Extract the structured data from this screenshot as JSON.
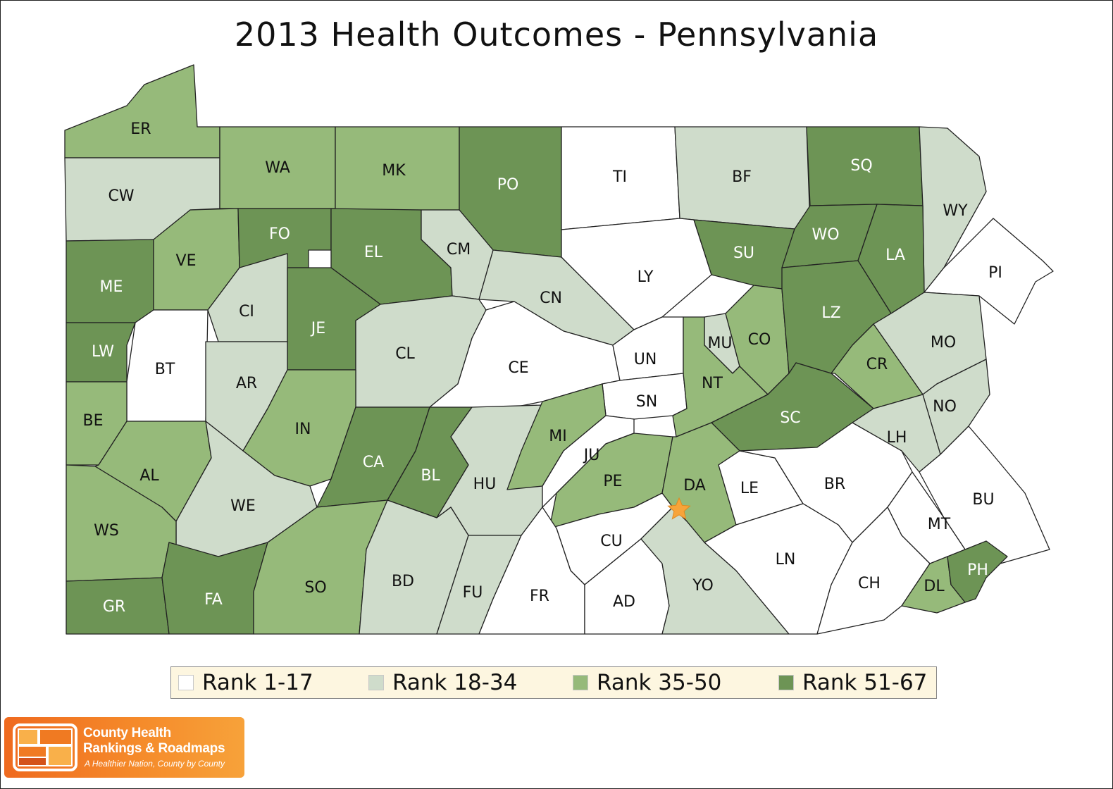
{
  "title": "2013 Health Outcomes - Pennsylvania",
  "colors": {
    "rank_1_17": "#ffffff",
    "rank_18_34": "#cfdccb",
    "rank_35_50": "#96ba7a",
    "rank_51_67": "#6d9455",
    "star": "#f7a43a",
    "legend_bg": "#fdf6e0",
    "logo_orange": "#f58a2a"
  },
  "legend": [
    {
      "key": "r1",
      "label": "Rank 1-17",
      "color": "#ffffff"
    },
    {
      "key": "r2",
      "label": "Rank 18-34",
      "color": "#cfdccb"
    },
    {
      "key": "r3",
      "label": "Rank 35-50",
      "color": "#96ba7a"
    },
    {
      "key": "r4",
      "label": "Rank 51-67",
      "color": "#6d9455"
    }
  ],
  "counties": [
    {
      "code": "ER",
      "group": "r3"
    },
    {
      "code": "CW",
      "group": "r2"
    },
    {
      "code": "WA",
      "group": "r3"
    },
    {
      "code": "MK",
      "group": "r3"
    },
    {
      "code": "PO",
      "group": "r4"
    },
    {
      "code": "TI",
      "group": "r1"
    },
    {
      "code": "BF",
      "group": "r2"
    },
    {
      "code": "SQ",
      "group": "r4"
    },
    {
      "code": "WY",
      "group": "r2"
    },
    {
      "code": "ME",
      "group": "r4"
    },
    {
      "code": "VE",
      "group": "r3"
    },
    {
      "code": "FO",
      "group": "r4"
    },
    {
      "code": "EL",
      "group": "r4"
    },
    {
      "code": "CM",
      "group": "r2"
    },
    {
      "code": "CN",
      "group": "r2"
    },
    {
      "code": "LY",
      "group": "r1"
    },
    {
      "code": "SU",
      "group": "r4"
    },
    {
      "code": "WO",
      "group": "r4"
    },
    {
      "code": "LA",
      "group": "r4"
    },
    {
      "code": "PI",
      "group": "r1"
    },
    {
      "code": "LW",
      "group": "r4"
    },
    {
      "code": "BT",
      "group": "r1"
    },
    {
      "code": "CI",
      "group": "r2"
    },
    {
      "code": "JE",
      "group": "r4"
    },
    {
      "code": "CL",
      "group": "r2"
    },
    {
      "code": "CE",
      "group": "r1"
    },
    {
      "code": "UN",
      "group": "r1"
    },
    {
      "code": "MU",
      "group": "r2"
    },
    {
      "code": "CO",
      "group": "r3"
    },
    {
      "code": "LZ",
      "group": "r4"
    },
    {
      "code": "MO",
      "group": "r2"
    },
    {
      "code": "BE",
      "group": "r3"
    },
    {
      "code": "AR",
      "group": "r2"
    },
    {
      "code": "IN",
      "group": "r3"
    },
    {
      "code": "SN",
      "group": "r1"
    },
    {
      "code": "NT",
      "group": "r3"
    },
    {
      "code": "CR",
      "group": "r3"
    },
    {
      "code": "SC",
      "group": "r4"
    },
    {
      "code": "NO",
      "group": "r2"
    },
    {
      "code": "AL",
      "group": "r3"
    },
    {
      "code": "CA",
      "group": "r4"
    },
    {
      "code": "BL",
      "group": "r4"
    },
    {
      "code": "HU",
      "group": "r2"
    },
    {
      "code": "MI",
      "group": "r3"
    },
    {
      "code": "JU",
      "group": "r1"
    },
    {
      "code": "PE",
      "group": "r3"
    },
    {
      "code": "DA",
      "group": "r3"
    },
    {
      "code": "LE",
      "group": "r1"
    },
    {
      "code": "BR",
      "group": "r1"
    },
    {
      "code": "LH",
      "group": "r2"
    },
    {
      "code": "BU",
      "group": "r1"
    },
    {
      "code": "WE",
      "group": "r2"
    },
    {
      "code": "WS",
      "group": "r3"
    },
    {
      "code": "MT",
      "group": "r1"
    },
    {
      "code": "CU",
      "group": "r1"
    },
    {
      "code": "GR",
      "group": "r4"
    },
    {
      "code": "FA",
      "group": "r4"
    },
    {
      "code": "SO",
      "group": "r3"
    },
    {
      "code": "BD",
      "group": "r2"
    },
    {
      "code": "FU",
      "group": "r2"
    },
    {
      "code": "FR",
      "group": "r1"
    },
    {
      "code": "AD",
      "group": "r1"
    },
    {
      "code": "YO",
      "group": "r2"
    },
    {
      "code": "LN",
      "group": "r1"
    },
    {
      "code": "CH",
      "group": "r1"
    },
    {
      "code": "DL",
      "group": "r3"
    },
    {
      "code": "PH",
      "group": "r4"
    }
  ],
  "logo": {
    "name_line1": "County Health",
    "name_line2": "Rankings & Roadmaps",
    "tagline": "A Healthier Nation, County by County"
  }
}
